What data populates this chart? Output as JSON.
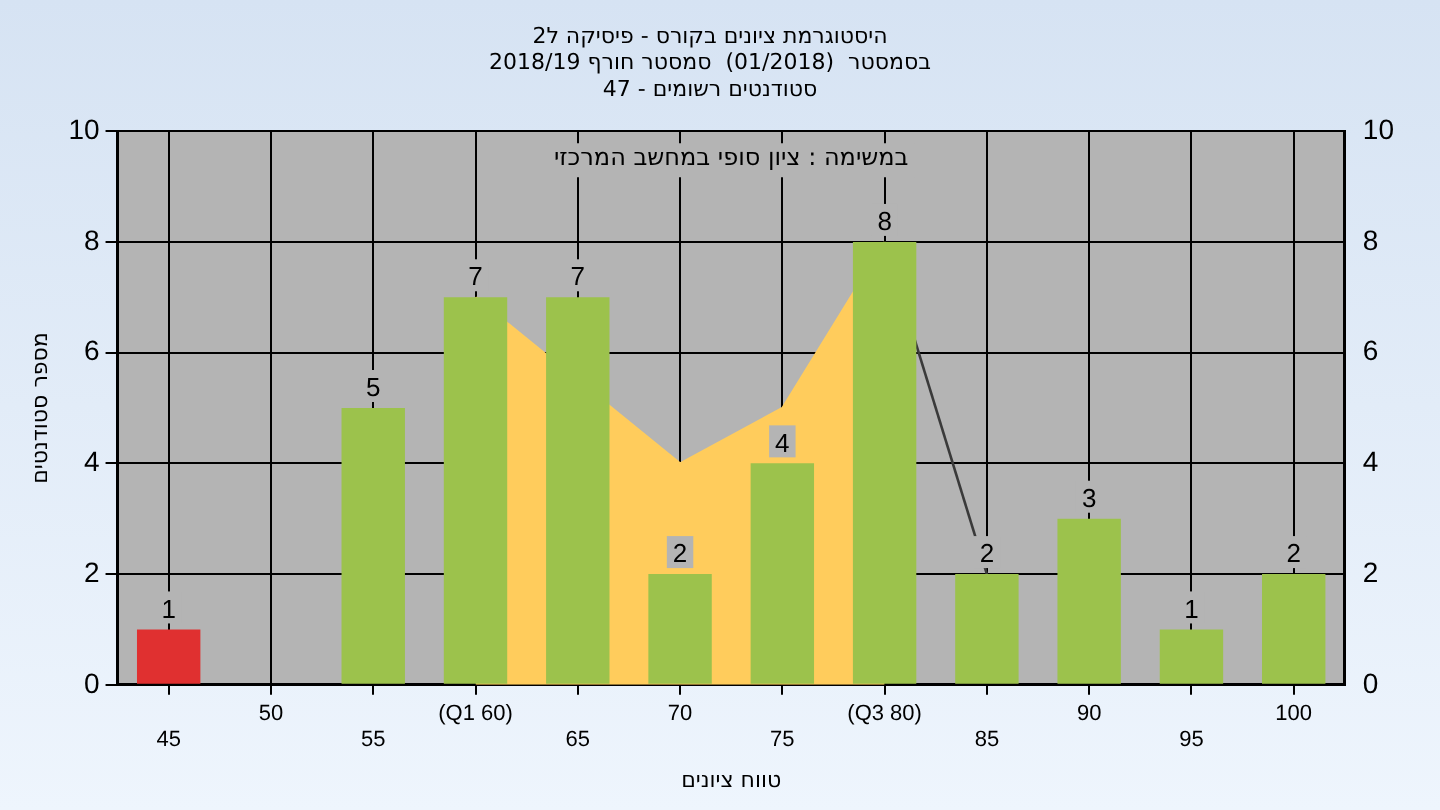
{
  "chart_data": {
    "type": "bar",
    "title": "היסטוגרמת ציונים בקורס - פיסיקה ל2",
    "subtitle": "בסמסטר  (01/2018)  סמסטר חורף 2018/19\nסטודנטים רשומים - 47",
    "xlabel": "טווח ציונים",
    "ylabel": "מספר סטודנטים",
    "annotations": [
      "במשימה : ציון סופי במחשב המרכזי"
    ],
    "categories": [
      "45",
      "50",
      "55",
      "(Q1 60)",
      "65",
      "70",
      "75",
      "(Q3 80)",
      "85",
      "90",
      "95",
      "100"
    ],
    "series": [
      {
        "type": "area",
        "color": "#ffcc5c",
        "values": [
          null,
          null,
          null,
          7,
          null,
          4,
          5,
          8,
          null,
          null,
          null,
          null
        ]
      },
      {
        "type": "line",
        "color": "#3a3a3a",
        "values": [
          null,
          null,
          null,
          null,
          null,
          null,
          null,
          8,
          2,
          null,
          null,
          null
        ]
      },
      {
        "colors": [
          "#e03030",
          "#9cc24c",
          "#9cc24c",
          "#9cc24c",
          "#9cc24c",
          "#9cc24c",
          "#9cc24c",
          "#9cc24c",
          "#9cc24c",
          "#9cc24c",
          "#9cc24c",
          "#9cc24c"
        ],
        "values": [
          1,
          0,
          5,
          7,
          7,
          2,
          4,
          8,
          2,
          3,
          1,
          2
        ],
        "value_labels": [
          "1",
          null,
          "5",
          "7",
          "7",
          "2",
          "4",
          "8",
          "2",
          "3",
          "1",
          "2"
        ]
      }
    ],
    "ylim": [
      0,
      10
    ],
    "yticks": [
      0,
      2,
      4,
      6,
      8,
      10
    ],
    "y2lim": [
      0,
      10
    ],
    "y2ticks": [
      0,
      2,
      4,
      6,
      8,
      10
    ],
    "grid": true,
    "legend": false
  }
}
